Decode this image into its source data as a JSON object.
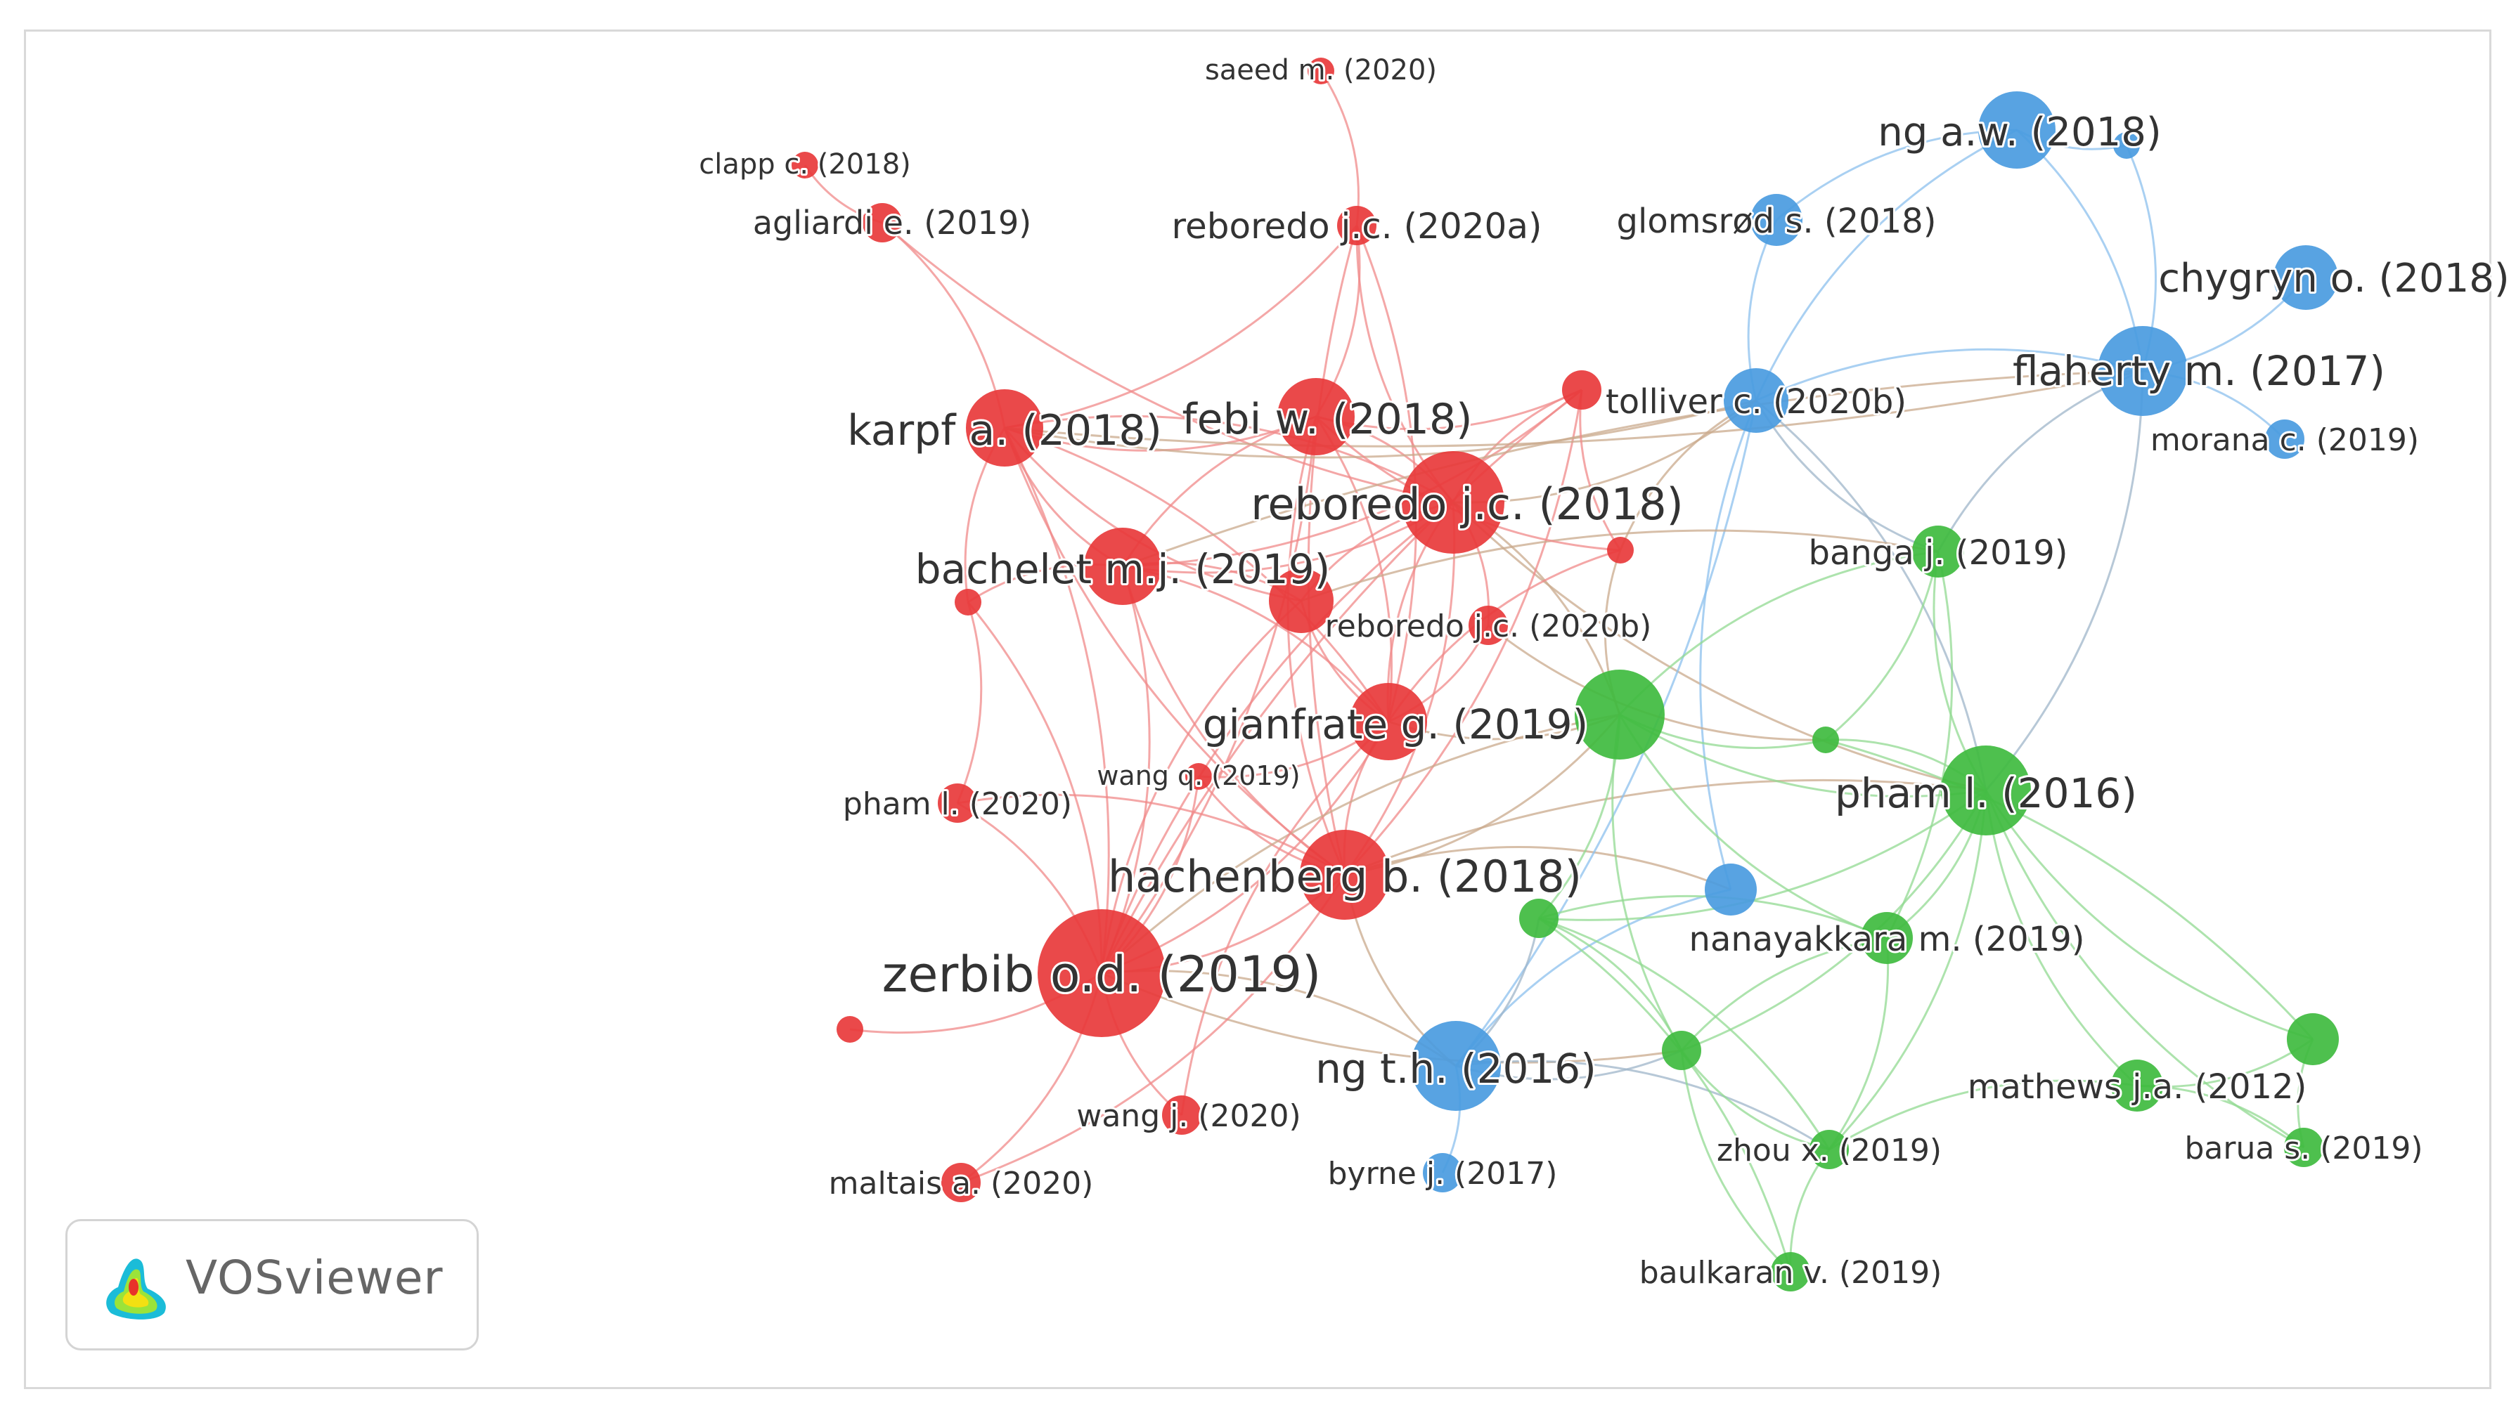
{
  "app": {
    "logo_text": "VOSviewer"
  },
  "clusters": {
    "red": {
      "color": "#e8393b",
      "link": "#f08a8a"
    },
    "blue": {
      "color": "#4a9be0",
      "link": "#8cc0ee"
    },
    "green": {
      "color": "#3fbb3f",
      "link": "#92d992"
    }
  },
  "nodes": [
    {
      "id": "saeed",
      "label": "saeed m. (2020)",
      "cluster": "red",
      "weight": 1
    },
    {
      "id": "clapp",
      "label": "clapp c. (2018)",
      "cluster": "red",
      "weight": 1
    },
    {
      "id": "agliardi",
      "label": "agliardi e. (2019)",
      "cluster": "red",
      "weight": 2
    },
    {
      "id": "reboredo20a",
      "label": "reboredo j.c. (2020a)",
      "cluster": "red",
      "weight": 2
    },
    {
      "id": "karpf",
      "label": "karpf a. (2018)",
      "cluster": "red",
      "weight": 5
    },
    {
      "id": "febi",
      "label": "febi w. (2018)",
      "cluster": "red",
      "weight": 5
    },
    {
      "id": "reboredo18",
      "label": "reboredo j.c. (2018)",
      "cluster": "red",
      "weight": 7
    },
    {
      "id": "bachelet",
      "label": "bachelet m.j. (2019)",
      "cluster": "red",
      "weight": 5
    },
    {
      "id": "reboredo20b",
      "label": "reboredo j.c. (2020b)",
      "cluster": "red",
      "weight": 2
    },
    {
      "id": "gianfrate",
      "label": "gianfrate g. (2019)",
      "cluster": "red",
      "weight": 5
    },
    {
      "id": "wangq",
      "label": "wang q. (2019)",
      "cluster": "red",
      "weight": 1
    },
    {
      "id": "phamL2020",
      "label": "pham l. (2020)",
      "cluster": "red",
      "weight": 2
    },
    {
      "id": "hachenberg",
      "label": "hachenberg b. (2018)",
      "cluster": "red",
      "weight": 6
    },
    {
      "id": "zerbib",
      "label": "zerbib o.d. (2019)",
      "cluster": "red",
      "weight": 9
    },
    {
      "id": "wangj",
      "label": "wang j. (2020)",
      "cluster": "red",
      "weight": 2
    },
    {
      "id": "maltais",
      "label": "maltais a. (2020)",
      "cluster": "red",
      "weight": 2
    },
    {
      "id": "red_u1",
      "label": "",
      "cluster": "red",
      "weight": 2
    },
    {
      "id": "red_u2",
      "label": "",
      "cluster": "red",
      "weight": 1
    },
    {
      "id": "red_u3",
      "label": "",
      "cluster": "red",
      "weight": 4
    },
    {
      "id": "red_u4",
      "label": "",
      "cluster": "red",
      "weight": 1
    },
    {
      "id": "red_u5",
      "label": "",
      "cluster": "red",
      "weight": 1
    },
    {
      "id": "ngaw",
      "label": "ng a.w. (2018)",
      "cluster": "blue",
      "weight": 5
    },
    {
      "id": "glomsrod",
      "label": "glomsrød s. (2018)",
      "cluster": "blue",
      "weight": 3
    },
    {
      "id": "chygryn",
      "label": "chygryn o. (2018)",
      "cluster": "blue",
      "weight": 4
    },
    {
      "id": "flaherty",
      "label": "flaherty m. (2017)",
      "cluster": "blue",
      "weight": 6
    },
    {
      "id": "tolliver",
      "label": "tolliver c. (2020b)",
      "cluster": "blue",
      "weight": 4
    },
    {
      "id": "morana",
      "label": "morana c. (2019)",
      "cluster": "blue",
      "weight": 2
    },
    {
      "id": "ngth",
      "label": "ng t.h. (2016)",
      "cluster": "blue",
      "weight": 6
    },
    {
      "id": "byrne",
      "label": "byrne j. (2017)",
      "cluster": "blue",
      "weight": 2
    },
    {
      "id": "blue_u1",
      "label": "",
      "cluster": "blue",
      "weight": 3
    },
    {
      "id": "blue_u2",
      "label": "",
      "cluster": "blue",
      "weight": 1
    },
    {
      "id": "banga",
      "label": "banga j. (2019)",
      "cluster": "green",
      "weight": 3
    },
    {
      "id": "phamL2016",
      "label": "pham l. (2016)",
      "cluster": "green",
      "weight": 6
    },
    {
      "id": "nanayakkara",
      "label": "nanayakkara m. (2019)",
      "cluster": "green",
      "weight": 3
    },
    {
      "id": "mathews",
      "label": "mathews j.a. (2012)",
      "cluster": "green",
      "weight": 3
    },
    {
      "id": "barua",
      "label": "barua s. (2019)",
      "cluster": "green",
      "weight": 2
    },
    {
      "id": "zhou",
      "label": "zhou x. (2019)",
      "cluster": "green",
      "weight": 2
    },
    {
      "id": "baulkaran",
      "label": "baulkaran v. (2019)",
      "cluster": "green",
      "weight": 2
    },
    {
      "id": "green_u1",
      "label": "",
      "cluster": "green",
      "weight": 6
    },
    {
      "id": "green_u2",
      "label": "",
      "cluster": "green",
      "weight": 1
    },
    {
      "id": "green_u3",
      "label": "",
      "cluster": "green",
      "weight": 2
    },
    {
      "id": "green_u4",
      "label": "",
      "cluster": "green",
      "weight": 2
    },
    {
      "id": "green_u5",
      "label": "",
      "cluster": "green",
      "weight": 3
    }
  ],
  "links": [
    [
      "saeed",
      "reboredo20a"
    ],
    [
      "clapp",
      "agliardi"
    ],
    [
      "agliardi",
      "karpf"
    ],
    [
      "agliardi",
      "reboredo18"
    ],
    [
      "reboredo20a",
      "febi"
    ],
    [
      "reboredo20a",
      "reboredo18"
    ],
    [
      "reboredo20a",
      "karpf"
    ],
    [
      "reboredo20a",
      "hachenberg"
    ],
    [
      "reboredo20a",
      "gianfrate"
    ],
    [
      "karpf",
      "febi"
    ],
    [
      "karpf",
      "reboredo18"
    ],
    [
      "karpf",
      "bachelet"
    ],
    [
      "karpf",
      "zerbib"
    ],
    [
      "karpf",
      "hachenberg"
    ],
    [
      "karpf",
      "gianfrate"
    ],
    [
      "karpf",
      "red_u3"
    ],
    [
      "febi",
      "reboredo18"
    ],
    [
      "febi",
      "bachelet"
    ],
    [
      "febi",
      "zerbib"
    ],
    [
      "febi",
      "hachenberg"
    ],
    [
      "febi",
      "gianfrate"
    ],
    [
      "febi",
      "red_u1"
    ],
    [
      "reboredo18",
      "bachelet"
    ],
    [
      "reboredo18",
      "gianfrate"
    ],
    [
      "reboredo18",
      "hachenberg"
    ],
    [
      "reboredo18",
      "zerbib"
    ],
    [
      "reboredo18",
      "red_u1"
    ],
    [
      "reboredo18",
      "red_u3"
    ],
    [
      "reboredo18",
      "reboredo20b"
    ],
    [
      "reboredo18",
      "tolliver"
    ],
    [
      "reboredo18",
      "green_u1"
    ],
    [
      "reboredo18",
      "phamL2016"
    ],
    [
      "bachelet",
      "zerbib"
    ],
    [
      "bachelet",
      "hachenberg"
    ],
    [
      "bachelet",
      "gianfrate"
    ],
    [
      "bachelet",
      "red_u2"
    ],
    [
      "bachelet",
      "red_u3"
    ],
    [
      "bachelet",
      "red_u1"
    ],
    [
      "gianfrate",
      "zerbib"
    ],
    [
      "gianfrate",
      "hachenberg"
    ],
    [
      "gianfrate",
      "wangq"
    ],
    [
      "gianfrate",
      "reboredo20b"
    ],
    [
      "gianfrate",
      "red_u3"
    ],
    [
      "gianfrate",
      "green_u1"
    ],
    [
      "hachenberg",
      "zerbib"
    ],
    [
      "hachenberg",
      "phamL2020"
    ],
    [
      "hachenberg",
      "wangq"
    ],
    [
      "hachenberg",
      "ngth"
    ],
    [
      "hachenberg",
      "blue_u1"
    ],
    [
      "hachenberg",
      "green_u1"
    ],
    [
      "hachenberg",
      "phamL2016"
    ],
    [
      "hachenberg",
      "red_u1"
    ],
    [
      "zerbib",
      "maltais"
    ],
    [
      "zerbib",
      "wangj"
    ],
    [
      "zerbib",
      "red_u5"
    ],
    [
      "zerbib",
      "phamL2020"
    ],
    [
      "zerbib",
      "ngth"
    ],
    [
      "zerbib",
      "red_u2"
    ],
    [
      "zerbib",
      "red_u3"
    ],
    [
      "zerbib",
      "wangq"
    ],
    [
      "zerbib",
      "green_u1"
    ],
    [
      "zerbib",
      "green_u3"
    ],
    [
      "zerbib",
      "red_u1"
    ],
    [
      "phamL2020",
      "red_u2"
    ],
    [
      "red_u2",
      "karpf"
    ],
    [
      "maltais",
      "hachenberg"
    ],
    [
      "wangj",
      "gianfrate"
    ],
    [
      "ngaw",
      "glomsrod"
    ],
    [
      "ngaw",
      "flaherty"
    ],
    [
      "ngaw",
      "blue_u2"
    ],
    [
      "blue_u2",
      "flaherty"
    ],
    [
      "ngaw",
      "tolliver"
    ],
    [
      "chygryn",
      "flaherty"
    ],
    [
      "flaherty",
      "tolliver"
    ],
    [
      "flaherty",
      "morana"
    ],
    [
      "flaherty",
      "banga"
    ],
    [
      "flaherty",
      "phamL2016"
    ],
    [
      "flaherty",
      "bachelet"
    ],
    [
      "flaherty",
      "karpf"
    ],
    [
      "glomsrod",
      "tolliver"
    ],
    [
      "tolliver",
      "phamL2016"
    ],
    [
      "tolliver",
      "blue_u1"
    ],
    [
      "tolliver",
      "ngth"
    ],
    [
      "tolliver",
      "banga"
    ],
    [
      "tolliver",
      "karpf"
    ],
    [
      "tolliver",
      "red_u4"
    ],
    [
      "ngth",
      "byrne"
    ],
    [
      "ngth",
      "green_u3"
    ],
    [
      "ngth",
      "blue_u1"
    ],
    [
      "ngth",
      "green_u4"
    ],
    [
      "ngth",
      "zhou"
    ],
    [
      "banga",
      "phamL2016"
    ],
    [
      "banga",
      "nanayakkara"
    ],
    [
      "banga",
      "green_u1"
    ],
    [
      "banga",
      "green_u2"
    ],
    [
      "banga",
      "red_u3"
    ],
    [
      "phamL2016",
      "nanayakkara"
    ],
    [
      "phamL2016",
      "mathews"
    ],
    [
      "phamL2016",
      "green_u1"
    ],
    [
      "phamL2016",
      "green_u2"
    ],
    [
      "phamL2016",
      "zhou"
    ],
    [
      "phamL2016",
      "barua"
    ],
    [
      "phamL2016",
      "green_u3"
    ],
    [
      "phamL2016",
      "green_u5"
    ],
    [
      "phamL2016",
      "green_u4"
    ],
    [
      "nanayakkara",
      "green_u4"
    ],
    [
      "nanayakkara",
      "zhou"
    ],
    [
      "nanayakkara",
      "green_u3"
    ],
    [
      "nanayakkara",
      "green_u1"
    ],
    [
      "mathews",
      "green_u5"
    ],
    [
      "mathews",
      "barua"
    ],
    [
      "mathews",
      "zhou"
    ],
    [
      "barua",
      "green_u5"
    ],
    [
      "zhou",
      "baulkaran"
    ],
    [
      "zhou",
      "green_u3"
    ],
    [
      "zhou",
      "green_u4"
    ],
    [
      "baulkaran",
      "green_u3"
    ],
    [
      "green_u3",
      "green_u4"
    ],
    [
      "green_u3",
      "green_u1"
    ],
    [
      "green_u4",
      "green_u1"
    ],
    [
      "green_u4",
      "baulkaran"
    ],
    [
      "green_u1",
      "green_u2"
    ],
    [
      "green_u2",
      "green_u5"
    ],
    [
      "reboredo20b",
      "green_u2"
    ],
    [
      "red_u4",
      "red_u1"
    ],
    [
      "red_u4",
      "gianfrate"
    ],
    [
      "red_u4",
      "febi"
    ],
    [
      "red_u4",
      "green_u1"
    ]
  ]
}
